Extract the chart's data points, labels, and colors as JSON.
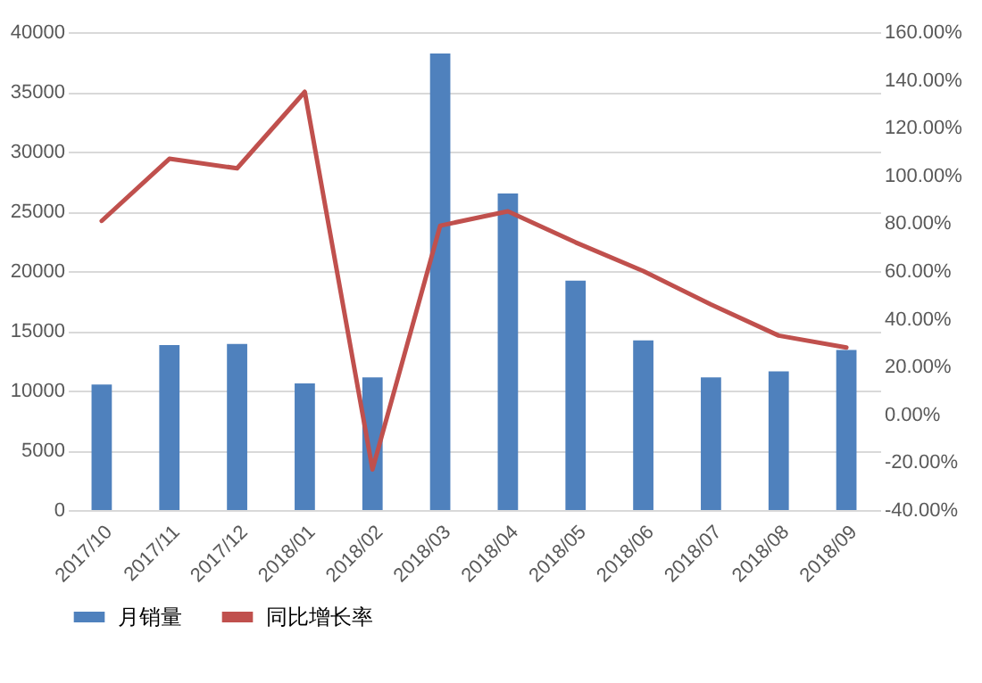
{
  "chart_data": {
    "type": "bar",
    "categories": [
      "2017/10",
      "2017/11",
      "2017/12",
      "2018/01",
      "2018/02",
      "2018/03",
      "2018/04",
      "2018/05",
      "2018/06",
      "2018/07",
      "2018/08",
      "2018/09"
    ],
    "series": [
      {
        "name": "月销量",
        "color": "#4f81bd",
        "values": [
          10500,
          13800,
          13900,
          10600,
          11100,
          38200,
          26500,
          19200,
          14200,
          11100,
          11600,
          13400
        ]
      },
      {
        "name": "同比增长率",
        "type": "line",
        "axis": "y2",
        "color": "#c0504d",
        "values": [
          81,
          107,
          103,
          135,
          -23,
          79,
          85,
          72,
          60,
          46,
          33,
          28
        ]
      }
    ],
    "ylim": [
      0,
      40000
    ],
    "yticks": [
      0,
      5000,
      10000,
      15000,
      20000,
      25000,
      30000,
      35000,
      40000
    ],
    "y2lim": [
      -40,
      160
    ],
    "y2ticks": [
      {
        "value": -40,
        "label": "-40.00%"
      },
      {
        "value": -20,
        "label": "-20.00%"
      },
      {
        "value": 0,
        "label": "0.00%"
      },
      {
        "value": 20,
        "label": "20.00%"
      },
      {
        "value": 40,
        "label": "40.00%"
      },
      {
        "value": 60,
        "label": "60.00%"
      },
      {
        "value": 80,
        "label": "80.00%"
      },
      {
        "value": 100,
        "label": "100.00%"
      },
      {
        "value": 120,
        "label": "120.00%"
      },
      {
        "value": 140,
        "label": "140.00%"
      },
      {
        "value": 160,
        "label": "160.00%"
      }
    ],
    "grid": "y",
    "legend": "bottom"
  }
}
